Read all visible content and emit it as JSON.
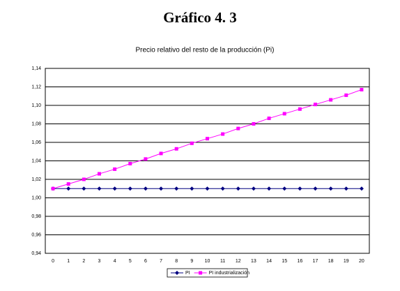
{
  "chart_data": {
    "type": "line",
    "title": "Gráfico 4. 3",
    "subtitle": "Precio relativo del resto de la producción (Pi)",
    "categories": [
      "0",
      "1",
      "2",
      "3",
      "4",
      "5",
      "6",
      "7",
      "8",
      "9",
      "10",
      "11",
      "12",
      "13",
      "14",
      "15",
      "16",
      "17",
      "18",
      "19",
      "20"
    ],
    "series": [
      {
        "name": "PI",
        "color": "#000080",
        "marker": "diamond",
        "values": [
          1.01,
          1.01,
          1.01,
          1.01,
          1.01,
          1.01,
          1.01,
          1.01,
          1.01,
          1.01,
          1.01,
          1.01,
          1.01,
          1.01,
          1.01,
          1.01,
          1.01,
          1.01,
          1.01,
          1.01,
          1.01
        ]
      },
      {
        "name": "PI industrialización",
        "color": "#ff00ff",
        "marker": "square",
        "values": [
          1.01,
          1.015,
          1.02,
          1.026,
          1.031,
          1.037,
          1.042,
          1.048,
          1.053,
          1.059,
          1.064,
          1.069,
          1.075,
          1.08,
          1.086,
          1.091,
          1.096,
          1.101,
          1.106,
          1.111,
          1.117
        ]
      }
    ],
    "ylim": [
      0.94,
      1.14
    ],
    "yticks": [
      {
        "value": 0.94,
        "label": "0,94"
      },
      {
        "value": 0.96,
        "label": "0,96"
      },
      {
        "value": 0.98,
        "label": "0,98"
      },
      {
        "value": 1.0,
        "label": "1,00"
      },
      {
        "value": 1.02,
        "label": "1,02"
      },
      {
        "value": 1.04,
        "label": "1,04"
      },
      {
        "value": 1.06,
        "label": "1,06"
      },
      {
        "value": 1.08,
        "label": "1,08"
      },
      {
        "value": 1.1,
        "label": "1,10"
      },
      {
        "value": 1.12,
        "label": "1,12"
      },
      {
        "value": 1.14,
        "label": "1,14"
      }
    ],
    "grid": true
  }
}
